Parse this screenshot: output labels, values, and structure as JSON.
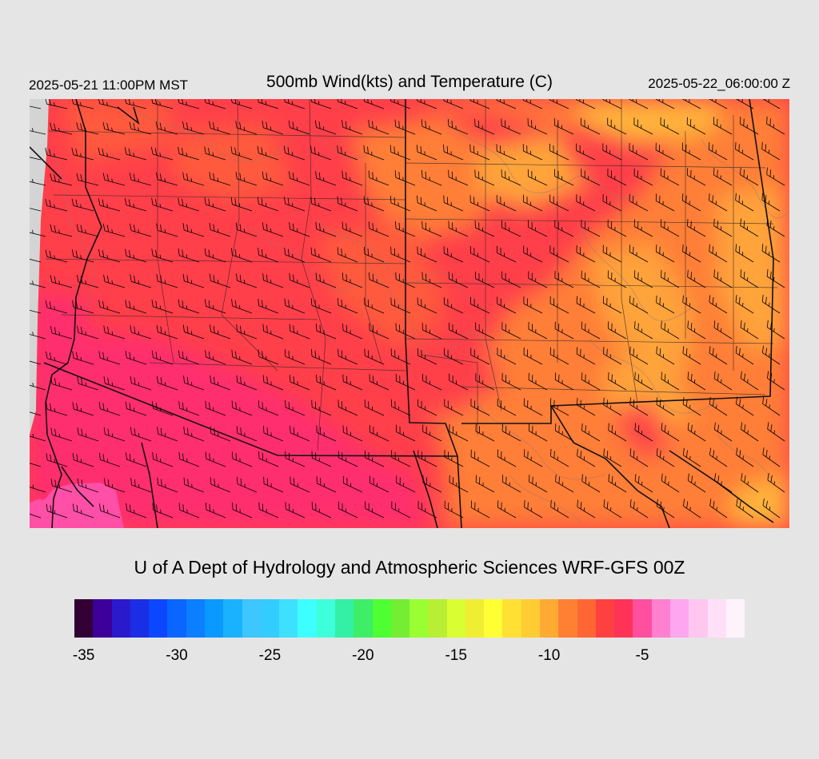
{
  "header": {
    "valid_local": "2025-05-21 11:00PM MST",
    "title": "500mb Wind(kts) and Temperature (C)",
    "valid_utc": "2025-05-22_06:00:00 Z"
  },
  "credit": "U of A Dept of Hydrology and Atmospheric Sciences WRF-GFS 00Z",
  "map": {
    "field_colors": {
      "missing_gray": "#d4d4d4",
      "pink_coldest": "#ff4fa6",
      "magenta_red": "#ff2e6e",
      "red": "#ff3f4a",
      "red_orange": "#ff5a3c",
      "orange": "#ff7e38",
      "light_orange": "#ffa33a",
      "yellow_orange": "#ffb43a"
    },
    "line_colors": {
      "state_border": "#111111",
      "county_border": "#222222",
      "contour": "#8a7a70",
      "barb": "#000000"
    }
  },
  "legend": {
    "colors": [
      "#330033",
      "#3d0099",
      "#2a1acc",
      "#1a2ee6",
      "#0a47ff",
      "#0a66ff",
      "#0a7fff",
      "#0a99ff",
      "#1ab2ff",
      "#3dc6ff",
      "#33ccff",
      "#3de0ff",
      "#3dffff",
      "#3dffd9",
      "#33f0a6",
      "#3dee66",
      "#4dff33",
      "#73ee33",
      "#99ff33",
      "#b8ee33",
      "#d9ff33",
      "#f0ee33",
      "#ffff33",
      "#ffe033",
      "#ffcc33",
      "#ffaa33",
      "#ff8033",
      "#ff6633",
      "#ff4040",
      "#ff3355",
      "#ff4f9e",
      "#ff80d0",
      "#ffa6f0",
      "#ffc6f0",
      "#ffe0f8",
      "#fff3fb"
    ],
    "labels": [
      {
        "text": "-35",
        "index": 0
      },
      {
        "text": "-30",
        "index": 5
      },
      {
        "text": "-25",
        "index": 10
      },
      {
        "text": "-20",
        "index": 15
      },
      {
        "text": "-15",
        "index": 20
      },
      {
        "text": "-10",
        "index": 25
      },
      {
        "text": "-5",
        "index": 30
      }
    ]
  }
}
